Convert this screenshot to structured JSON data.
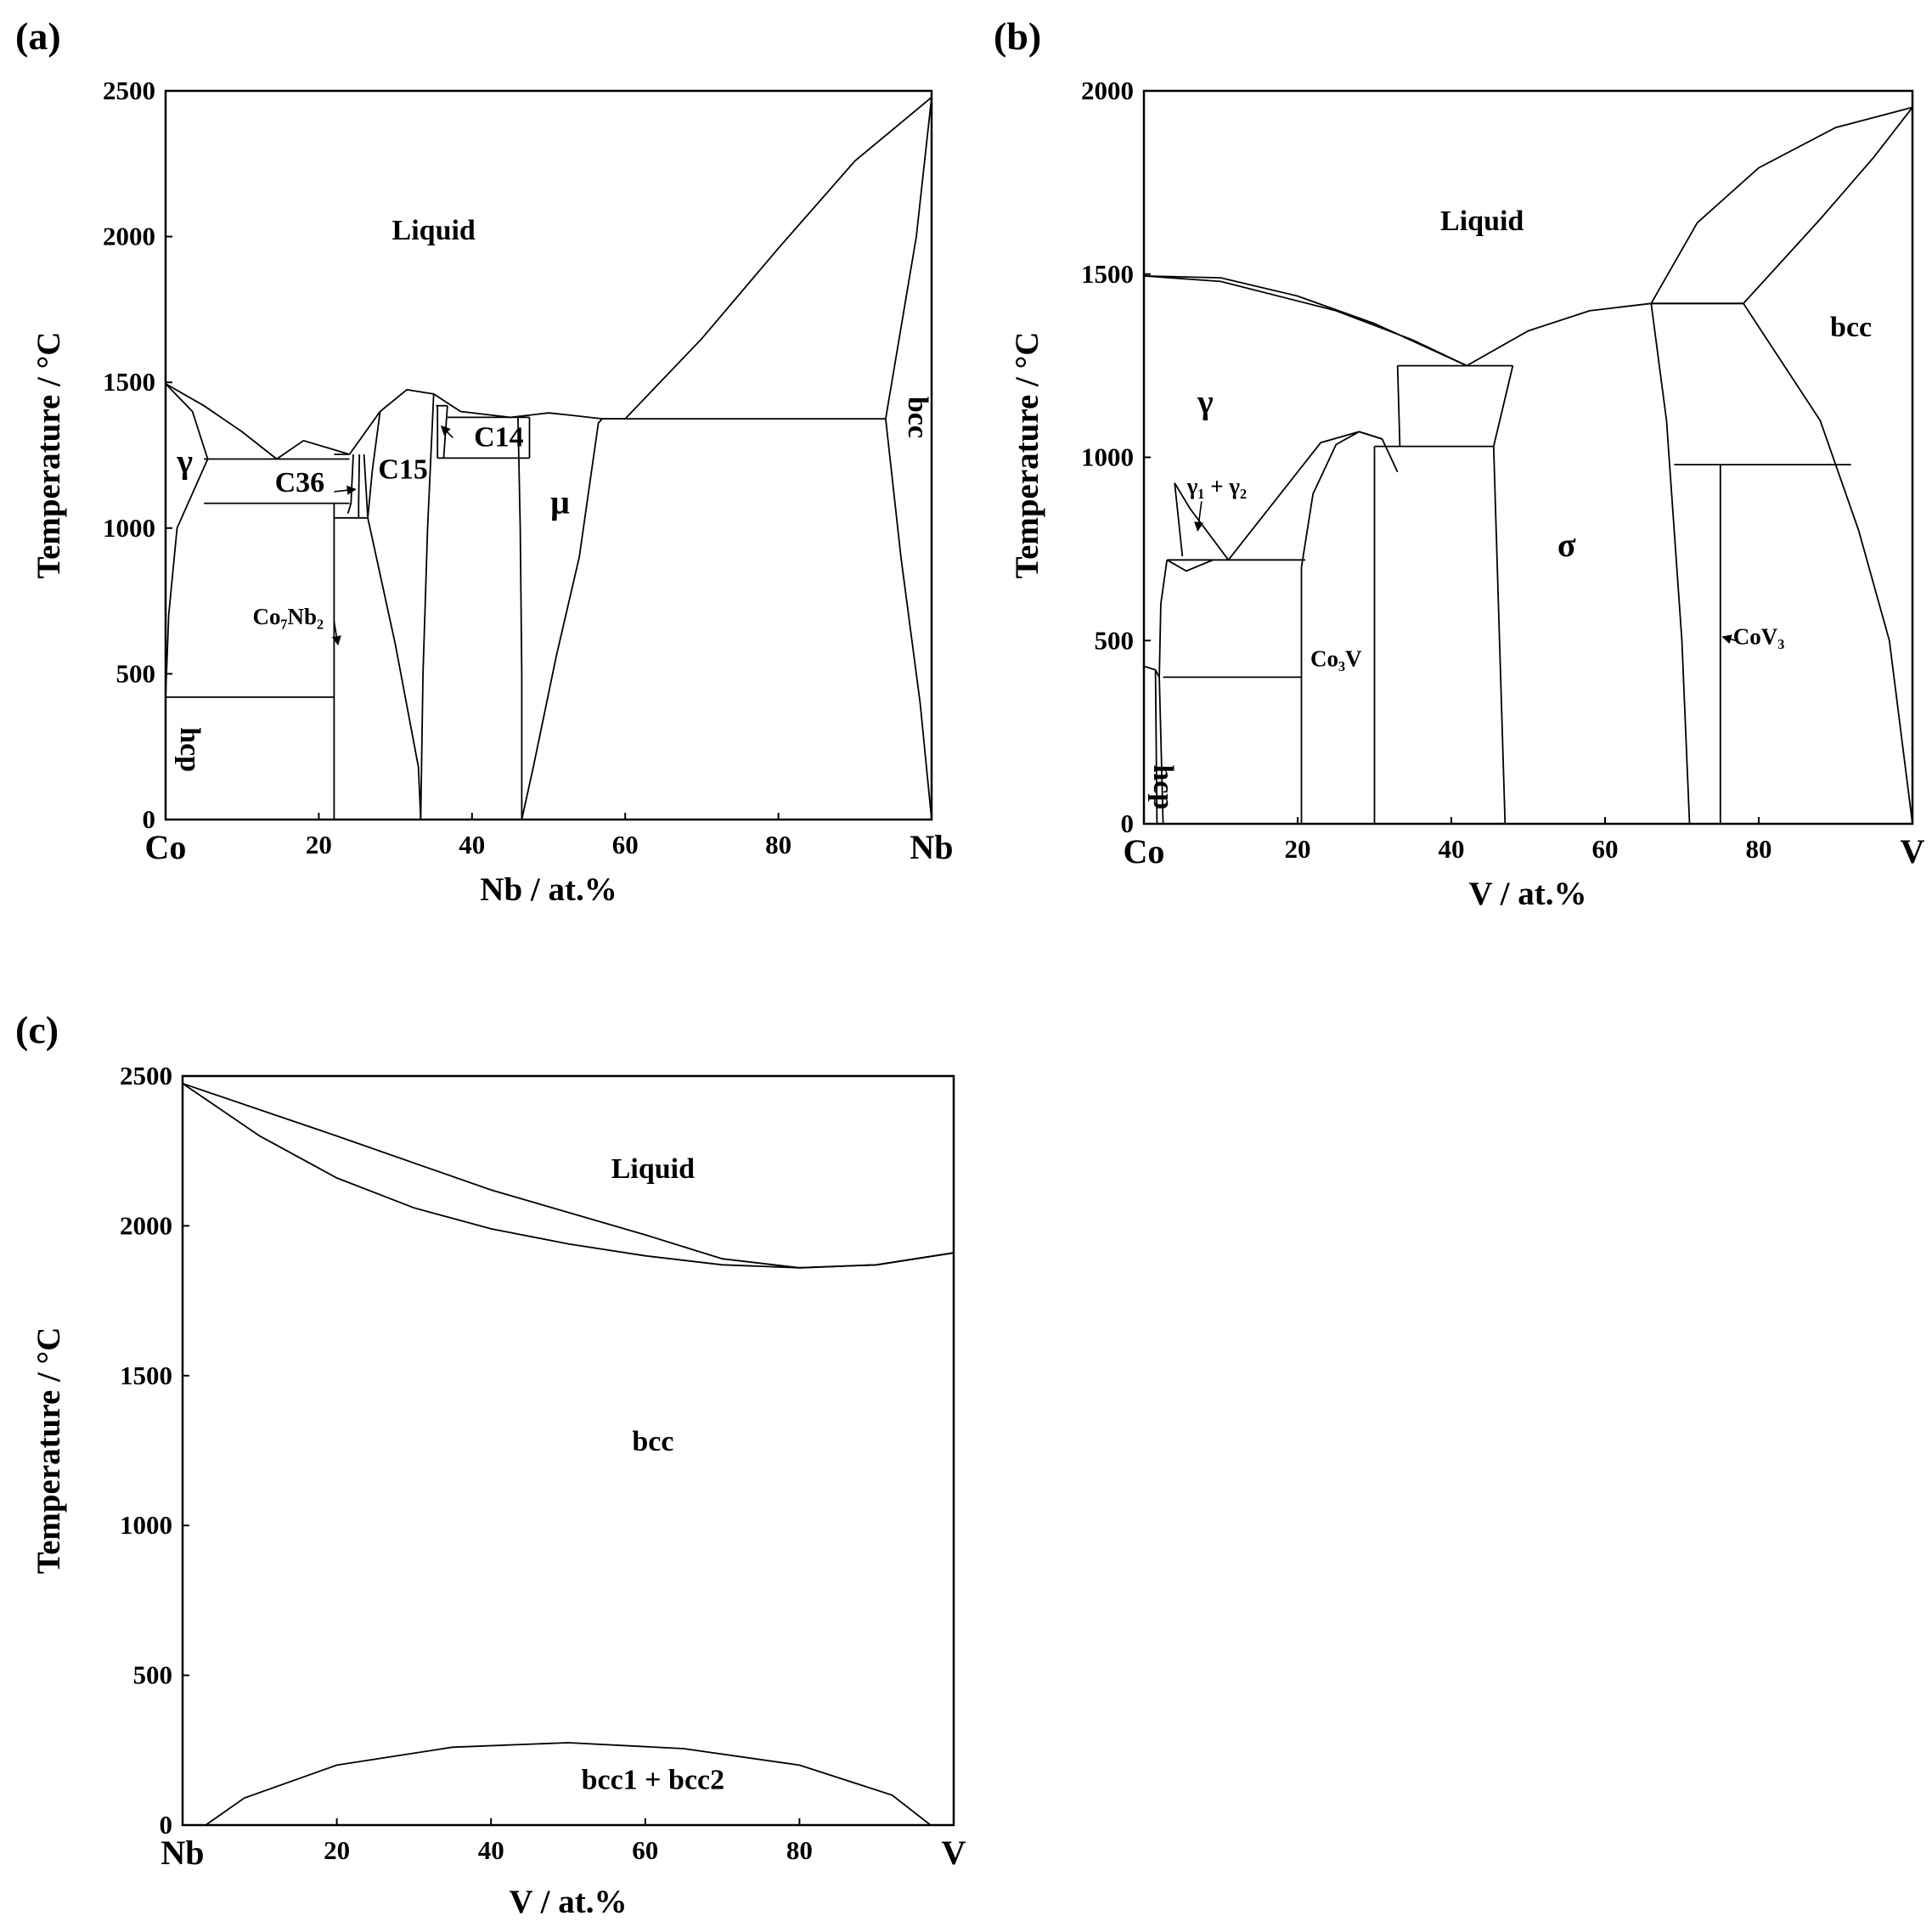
{
  "chart_data": [
    {
      "type": "line",
      "panel_label": "(a)",
      "xlabel": "Nb / at.%",
      "ylabel": "Temperature / °C",
      "xlim": [
        0,
        100
      ],
      "ylim": [
        0,
        2500
      ],
      "x_ticks": [
        "Co",
        "20",
        "40",
        "60",
        "80",
        "Nb"
      ],
      "y_ticks": [
        "0",
        "500",
        "1000",
        "1500",
        "2000",
        "2500"
      ],
      "regions": [
        {
          "label": "Liquid",
          "x": 35,
          "y": 1990
        },
        {
          "label": "γ",
          "x": 2.5,
          "y": 1190
        },
        {
          "label": "C36",
          "x": 17.5,
          "y": 1125
        },
        {
          "label": "C15",
          "x": 31,
          "y": 1170
        },
        {
          "label": "C14",
          "x": 43.5,
          "y": 1280
        },
        {
          "label": "μ",
          "x": 51.5,
          "y": 1050
        },
        {
          "label": "Co₇Nb₂",
          "x": 16,
          "y": 670
        },
        {
          "label": "hcp",
          "x": 2,
          "y": 240,
          "rotated": true
        },
        {
          "label": "bcc",
          "x": 97,
          "y": 1380,
          "rotated": true
        }
      ],
      "lines": [
        [
          [
            0,
            1495
          ],
          [
            5,
            1420
          ],
          [
            10,
            1330
          ],
          [
            14.5,
            1237
          ]
        ],
        [
          [
            0,
            1495
          ],
          [
            3.5,
            1400
          ],
          [
            5.5,
            1237
          ]
        ],
        [
          [
            14.5,
            1237
          ],
          [
            18,
            1300
          ],
          [
            24,
            1253
          ]
        ],
        [
          [
            24,
            1253
          ],
          [
            28,
            1400
          ],
          [
            31.5,
            1475
          ],
          [
            35,
            1460
          ],
          [
            38.5,
            1400
          ],
          [
            45,
            1380
          ]
        ],
        [
          [
            45,
            1380
          ],
          [
            50,
            1395
          ],
          [
            53,
            1387
          ],
          [
            57,
            1375
          ]
        ],
        [
          [
            57,
            1375
          ],
          [
            60,
            1375
          ],
          [
            70,
            1650
          ],
          [
            80,
            1960
          ],
          [
            90,
            2260
          ],
          [
            100,
            2478
          ]
        ],
        [
          [
            94,
            1375
          ],
          [
            98,
            2000
          ],
          [
            100,
            2478
          ]
        ],
        [
          [
            5.5,
            1237
          ],
          [
            1.5,
            1000
          ],
          [
            0.4,
            700
          ],
          [
            0,
            420
          ]
        ],
        [
          [
            22,
            1085
          ],
          [
            22,
            0
          ]
        ],
        [
          [
            5,
            1237
          ],
          [
            24,
            1237
          ]
        ],
        [
          [
            22,
            1253
          ],
          [
            24,
            1253
          ]
        ],
        [
          [
            5,
            1085
          ],
          [
            24,
            1085
          ]
        ],
        [
          [
            0,
            420
          ],
          [
            22,
            420
          ]
        ],
        [
          [
            24.5,
            1253
          ],
          [
            24.2,
            1085
          ],
          [
            23.8,
            1050
          ]
        ],
        [
          [
            25.3,
            1253
          ],
          [
            25.2,
            1085
          ],
          [
            25.2,
            1035
          ]
        ],
        [
          [
            25.9,
            1253
          ],
          [
            26.4,
            1035
          ]
        ],
        [
          [
            22,
            1035
          ],
          [
            26.4,
            1035
          ]
        ],
        [
          [
            26.4,
            1035
          ],
          [
            30,
            600
          ],
          [
            33,
            180
          ],
          [
            33.3,
            0
          ]
        ],
        [
          [
            28,
            1400
          ],
          [
            27,
            1200
          ],
          [
            26.4,
            1035
          ]
        ],
        [
          [
            33.3,
            0
          ],
          [
            33.6,
            500
          ],
          [
            34.2,
            1000
          ],
          [
            35,
            1460
          ]
        ],
        [
          [
            35.3,
            1420
          ],
          [
            36.8,
            1420
          ]
        ],
        [
          [
            35.5,
            1420
          ],
          [
            35.5,
            1240
          ]
        ],
        [
          [
            36.8,
            1420
          ],
          [
            36.3,
            1240
          ]
        ],
        [
          [
            35.5,
            1240
          ],
          [
            47.5,
            1240
          ]
        ],
        [
          [
            36.8,
            1380
          ],
          [
            47.5,
            1380
          ]
        ],
        [
          [
            47.5,
            1380
          ],
          [
            47.5,
            1240
          ]
        ],
        [
          [
            46,
            1385
          ],
          [
            46.3,
            1000
          ],
          [
            46.5,
            500
          ],
          [
            46.5,
            0
          ]
        ],
        [
          [
            46.5,
            0
          ],
          [
            48,
            180
          ],
          [
            51,
            560
          ],
          [
            54,
            900
          ],
          [
            56.5,
            1360
          ],
          [
            57,
            1375
          ]
        ],
        [
          [
            57,
            1375
          ],
          [
            94,
            1375
          ]
        ],
        [
          [
            94,
            1375
          ],
          [
            96,
            900
          ],
          [
            98.5,
            400
          ],
          [
            100,
            0
          ]
        ]
      ],
      "arrows": [
        {
          "from": [
            22,
            680
          ],
          "to": [
            22.5,
            600
          ]
        },
        {
          "from": [
            22,
            1125
          ],
          "to": [
            24.8,
            1133
          ]
        },
        {
          "from": [
            37.5,
            1310
          ],
          "to": [
            36,
            1350
          ]
        }
      ]
    },
    {
      "type": "line",
      "panel_label": "(b)",
      "xlabel": "V / at.%",
      "ylabel": "Temperature / °C",
      "xlim": [
        0,
        100
      ],
      "ylim": [
        0,
        2000
      ],
      "x_ticks": [
        "Co",
        "20",
        "40",
        "60",
        "80",
        "V"
      ],
      "y_ticks": [
        "0",
        "500",
        "1000",
        "1500",
        "2000"
      ],
      "regions": [
        {
          "label": "Liquid",
          "x": 44,
          "y": 1620
        },
        {
          "label": "γ",
          "x": 8,
          "y": 1120
        },
        {
          "label": "γ₁ + γ₂",
          "x": 9.5,
          "y": 900
        },
        {
          "label": "σ",
          "x": 55,
          "y": 730
        },
        {
          "label": "bcc",
          "x": 92,
          "y": 1330
        },
        {
          "label": "Co₃V",
          "x": 25,
          "y": 430
        },
        {
          "label": "CoV₃",
          "x": 80,
          "y": 490
        },
        {
          "label": "hcp",
          "x": 1.3,
          "y": 100,
          "rotated": true
        }
      ],
      "lines": [
        [
          [
            0,
            1495
          ],
          [
            10,
            1490
          ],
          [
            20,
            1440
          ],
          [
            30,
            1365
          ],
          [
            42,
            1250
          ]
        ],
        [
          [
            0,
            1495
          ],
          [
            10,
            1480
          ],
          [
            25,
            1400
          ],
          [
            35,
            1320
          ],
          [
            42,
            1250
          ]
        ],
        [
          [
            42,
            1250
          ],
          [
            50,
            1345
          ],
          [
            58,
            1400
          ],
          [
            66,
            1420
          ]
        ],
        [
          [
            66,
            1420
          ],
          [
            72,
            1640
          ],
          [
            80,
            1790
          ],
          [
            90,
            1900
          ],
          [
            100,
            1955
          ]
        ],
        [
          [
            66,
            1420
          ],
          [
            78,
            1420
          ],
          [
            88,
            1650
          ],
          [
            95,
            1820
          ],
          [
            100,
            1955
          ]
        ],
        [
          [
            66,
            1420
          ],
          [
            78,
            1420
          ]
        ],
        [
          [
            33,
            1250
          ],
          [
            48,
            1250
          ]
        ],
        [
          [
            33,
            1250
          ],
          [
            33.3,
            1030
          ]
        ],
        [
          [
            48,
            1250
          ],
          [
            45.5,
            1030
          ]
        ],
        [
          [
            30,
            1030
          ],
          [
            45.5,
            1030
          ]
        ],
        [
          [
            45.5,
            1030
          ],
          [
            47,
            0
          ]
        ],
        [
          [
            30,
            1030
          ],
          [
            30,
            0
          ]
        ],
        [
          [
            3,
            720
          ],
          [
            21,
            720
          ]
        ],
        [
          [
            2.5,
            400
          ],
          [
            20.5,
            400
          ]
        ],
        [
          [
            3,
            720
          ],
          [
            5.5,
            690
          ],
          [
            9,
            720
          ]
        ],
        [
          [
            4,
            930
          ],
          [
            5,
            730
          ]
        ],
        [
          [
            4,
            930
          ],
          [
            6,
            860
          ],
          [
            11,
            720
          ]
        ],
        [
          [
            11,
            720
          ],
          [
            17,
            880
          ],
          [
            23,
            1040
          ],
          [
            28,
            1070
          ]
        ],
        [
          [
            28,
            1070
          ],
          [
            31,
            1050
          ]
        ],
        [
          [
            20.5,
            700
          ],
          [
            22,
            900
          ],
          [
            25,
            1035
          ],
          [
            28,
            1070
          ],
          [
            31,
            1050
          ],
          [
            33,
            960
          ]
        ],
        [
          [
            20.5,
            0
          ],
          [
            20.5,
            700
          ]
        ],
        [
          [
            3,
            720
          ],
          [
            2.2,
            600
          ],
          [
            2,
            400
          ],
          [
            2.5,
            0
          ]
        ],
        [
          [
            0,
            430
          ],
          [
            1.5,
            420
          ],
          [
            2,
            400
          ]
        ],
        [
          [
            1.5,
            420
          ],
          [
            1.7,
            0
          ]
        ],
        [
          [
            66,
            1420
          ],
          [
            68,
            1100
          ],
          [
            70,
            500
          ],
          [
            71,
            0
          ]
        ],
        [
          [
            69,
            980
          ],
          [
            92,
            980
          ]
        ],
        [
          [
            75,
            980
          ],
          [
            75,
            0
          ]
        ],
        [
          [
            78,
            1420
          ],
          [
            88,
            1100
          ],
          [
            93,
            800
          ],
          [
            97,
            500
          ],
          [
            100,
            0
          ]
        ]
      ],
      "arrows": [
        {
          "from": [
            7.5,
            880
          ],
          "to": [
            7,
            800
          ]
        },
        {
          "from": [
            77,
            500
          ],
          "to": [
            75.3,
            510
          ]
        }
      ]
    },
    {
      "type": "line",
      "panel_label": "(c)",
      "xlabel": "V / at.%",
      "ylabel": "Temperature / °C",
      "xlim": [
        0,
        100
      ],
      "ylim": [
        0,
        2500
      ],
      "x_ticks": [
        "Nb",
        "20",
        "40",
        "60",
        "80",
        "V"
      ],
      "y_ticks": [
        "0",
        "500",
        "1000",
        "1500",
        "2000",
        "2500"
      ],
      "regions": [
        {
          "label": "Liquid",
          "x": 61,
          "y": 2160
        },
        {
          "label": "bcc",
          "x": 61,
          "y": 1250
        },
        {
          "label": "bcc1 + bcc2",
          "x": 61,
          "y": 120
        }
      ],
      "lines": [
        [
          [
            0,
            2475
          ],
          [
            20,
            2300
          ],
          [
            40,
            2120
          ],
          [
            60,
            1970
          ],
          [
            70,
            1890
          ],
          [
            80,
            1860
          ],
          [
            90,
            1870
          ],
          [
            100,
            1910
          ]
        ],
        [
          [
            0,
            2475
          ],
          [
            10,
            2300
          ],
          [
            20,
            2160
          ],
          [
            30,
            2060
          ],
          [
            40,
            1990
          ],
          [
            50,
            1940
          ],
          [
            60,
            1900
          ],
          [
            70,
            1870
          ],
          [
            80,
            1860
          ],
          [
            90,
            1870
          ],
          [
            100,
            1910
          ]
        ],
        [
          [
            3,
            0
          ],
          [
            8,
            90
          ],
          [
            20,
            200
          ],
          [
            35,
            260
          ],
          [
            50,
            275
          ],
          [
            65,
            255
          ],
          [
            80,
            200
          ],
          [
            92,
            100
          ],
          [
            97,
            0
          ]
        ]
      ],
      "arrows": []
    }
  ]
}
